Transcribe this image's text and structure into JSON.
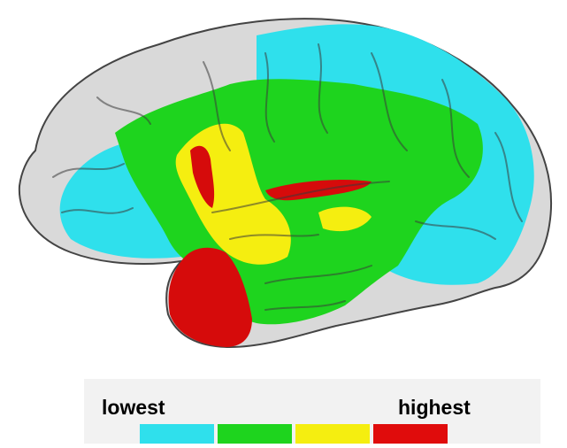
{
  "legend": {
    "low_label": "lowest",
    "high_label": "highest",
    "colors": [
      "#2fe0ec",
      "#1ed41e",
      "#f5ee10",
      "#e00c0c"
    ]
  }
}
